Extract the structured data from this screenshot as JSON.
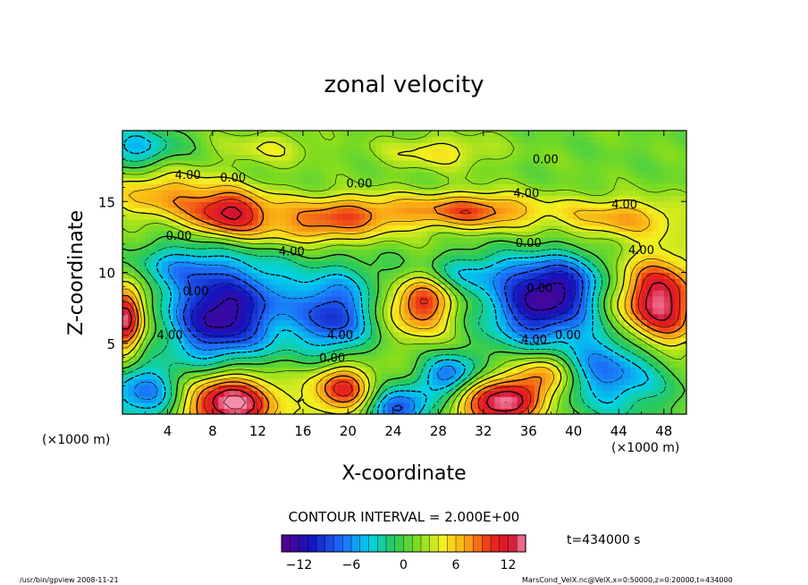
{
  "chart_data": {
    "type": "heatmap",
    "title": "zonal velocity",
    "xlabel": "X-coordinate",
    "ylabel": "Z-coordinate",
    "x_unit_left": "(×1000 m)",
    "x_unit_right": "(×1000 m)",
    "xlim": [
      0,
      50
    ],
    "ylim": [
      0,
      20
    ],
    "xticks": [
      4,
      8,
      12,
      16,
      20,
      24,
      28,
      32,
      36,
      40,
      44,
      48
    ],
    "xtick_labels": [
      "4",
      "8",
      "12",
      "16",
      "20",
      "24",
      "28",
      "32",
      "36",
      "40",
      "44",
      "48"
    ],
    "yticks": [
      5,
      10,
      15
    ],
    "ytick_labels": [
      "5",
      "10",
      "15"
    ],
    "contour_interval": "CONTOUR INTERVAL = 2.000E+00",
    "time_label": "t=434000 s",
    "colorbar": {
      "range": [
        -14,
        14
      ],
      "ticks": [
        -12,
        -6,
        0,
        6,
        12
      ],
      "tick_labels": [
        "−12",
        "−6",
        "0",
        "6",
        "12"
      ]
    },
    "contour_labels": [
      {
        "text": "4.00",
        "x": 5.8,
        "z": 16.6
      },
      {
        "text": "0.00",
        "x": 9.8,
        "z": 16.4
      },
      {
        "text": "0.00",
        "x": 21.0,
        "z": 16.0
      },
      {
        "text": "0.00",
        "x": 37.5,
        "z": 17.7
      },
      {
        "text": "4.00",
        "x": 35.8,
        "z": 15.3
      },
      {
        "text": "4.00",
        "x": 44.5,
        "z": 14.5
      },
      {
        "text": "0.00",
        "x": 5.0,
        "z": 12.3
      },
      {
        "text": "4.00",
        "x": 15.0,
        "z": 11.2
      },
      {
        "text": "0.00",
        "x": 36.0,
        "z": 11.8
      },
      {
        "text": "4.00",
        "x": 46.0,
        "z": 11.3
      },
      {
        "text": "0.00",
        "x": 6.5,
        "z": 8.4
      },
      {
        "text": "0.00",
        "x": 37.0,
        "z": 8.6
      },
      {
        "text": "4.00",
        "x": 4.2,
        "z": 5.3
      },
      {
        "text": "4.00",
        "x": 19.3,
        "z": 5.3
      },
      {
        "text": "0.00",
        "x": 18.6,
        "z": 3.7
      },
      {
        "text": "4.00",
        "x": 36.5,
        "z": 5.0
      },
      {
        "text": "0.00",
        "x": 39.5,
        "z": 5.3
      }
    ],
    "field_features": [
      {
        "x": 9.5,
        "z": 14.2,
        "amp": 10,
        "sx": 2.5,
        "sz": 1.2
      },
      {
        "x": 3.5,
        "z": 15.5,
        "amp": 6,
        "sx": 3.5,
        "sz": 1.3
      },
      {
        "x": 20.0,
        "z": 14.3,
        "amp": 7,
        "sx": 5.0,
        "sz": 0.9
      },
      {
        "x": 31.5,
        "z": 14.4,
        "amp": 8,
        "sx": 4.0,
        "sz": 0.9
      },
      {
        "x": 44.0,
        "z": 13.9,
        "amp": 6,
        "sx": 4.0,
        "sz": 1.0
      },
      {
        "x": 17.0,
        "z": 12.9,
        "amp": 5,
        "sx": 4.0,
        "sz": 0.8
      },
      {
        "x": 13.0,
        "z": 18.8,
        "amp": 3,
        "sx": 3.0,
        "sz": 0.8
      },
      {
        "x": 28.0,
        "z": 18.5,
        "amp": 4,
        "sx": 3.5,
        "sz": 0.8
      },
      {
        "x": 1.2,
        "z": 18.8,
        "amp": -6,
        "sx": 2.5,
        "sz": 1.0
      },
      {
        "x": 8.0,
        "z": 6.9,
        "amp": -12,
        "sx": 2.8,
        "sz": 2.3
      },
      {
        "x": 12.5,
        "z": 7.8,
        "amp": -6,
        "sx": 3.0,
        "sz": 2.5
      },
      {
        "x": 18.8,
        "z": 7.0,
        "amp": -10,
        "sx": 2.2,
        "sz": 2.0
      },
      {
        "x": 36.5,
        "z": 7.5,
        "amp": -11,
        "sx": 3.0,
        "sz": 2.0
      },
      {
        "x": 39.5,
        "z": 9.2,
        "amp": -7,
        "sx": 2.5,
        "sz": 1.5
      },
      {
        "x": 26.5,
        "z": 8.0,
        "amp": 10,
        "sx": 1.9,
        "sz": 1.7
      },
      {
        "x": 47.5,
        "z": 7.8,
        "amp": 13,
        "sx": 2.6,
        "sz": 2.3
      },
      {
        "x": 0.3,
        "z": 6.8,
        "amp": 13,
        "sx": 1.1,
        "sz": 1.7
      },
      {
        "x": 9.5,
        "z": 0.8,
        "amp": 14,
        "sx": 3.0,
        "sz": 1.5
      },
      {
        "x": 19.5,
        "z": 1.8,
        "amp": 10,
        "sx": 2.0,
        "sz": 1.3
      },
      {
        "x": 33.5,
        "z": 0.8,
        "amp": 13,
        "sx": 2.5,
        "sz": 1.3
      },
      {
        "x": 37.5,
        "z": 2.8,
        "amp": 8,
        "sx": 1.7,
        "sz": 1.2
      },
      {
        "x": 29.0,
        "z": 2.8,
        "amp": -9,
        "sx": 1.7,
        "sz": 1.0
      },
      {
        "x": 43.5,
        "z": 3.2,
        "amp": -8,
        "sx": 3.5,
        "sz": 2.2
      },
      {
        "x": 24.5,
        "z": 0.5,
        "amp": -10,
        "sx": 2.0,
        "sz": 1.0
      },
      {
        "x": 2.0,
        "z": 1.5,
        "amp": -8,
        "sx": 2.5,
        "sz": 1.5
      },
      {
        "x": 5.0,
        "z": 10.5,
        "amp": -5,
        "sx": 3.0,
        "sz": 1.2
      },
      {
        "x": 30.0,
        "z": 10.0,
        "amp": -5,
        "sx": 5.0,
        "sz": 1.0
      }
    ]
  },
  "footer": {
    "left": "/usr/bin/gpview   2008-11-21",
    "right": "MarsCond_VelX.nc@VelX,x=0:50000,z=0:20000,t=434000"
  }
}
